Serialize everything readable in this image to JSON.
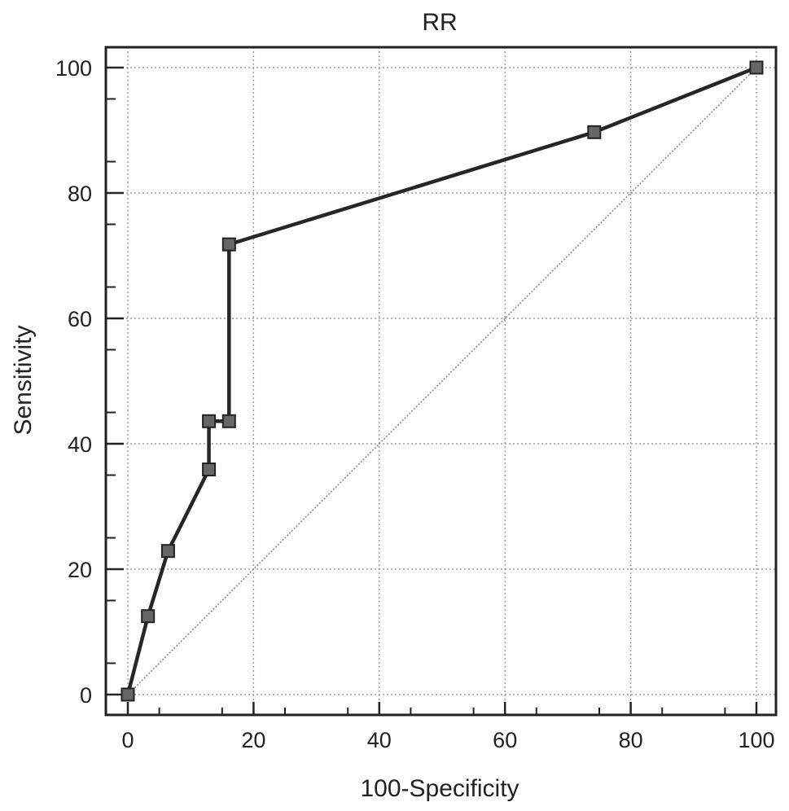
{
  "chart_data": {
    "type": "line",
    "title": "RR",
    "xlabel": "100-Specificity",
    "ylabel": "Sensitivity",
    "xlim": [
      0,
      100
    ],
    "ylim": [
      0,
      100
    ],
    "x_ticks": [
      0,
      20,
      40,
      60,
      80,
      100
    ],
    "y_ticks": [
      0,
      20,
      40,
      60,
      80,
      100
    ],
    "grid": true,
    "series": [
      {
        "values": [
          {
            "x": 0,
            "y": 0
          },
          {
            "x": 3.2,
            "y": 12.5
          },
          {
            "x": 6.4,
            "y": 22.9
          },
          {
            "x": 12.9,
            "y": 35.9
          },
          {
            "x": 12.9,
            "y": 43.6
          },
          {
            "x": 16.1,
            "y": 43.6
          },
          {
            "x": 16.1,
            "y": 71.8
          },
          {
            "x": 74.2,
            "y": 89.7
          },
          {
            "x": 100,
            "y": 100
          }
        ]
      }
    ],
    "reference_line": {
      "from": [
        0,
        0
      ],
      "to": [
        100,
        100
      ]
    }
  }
}
